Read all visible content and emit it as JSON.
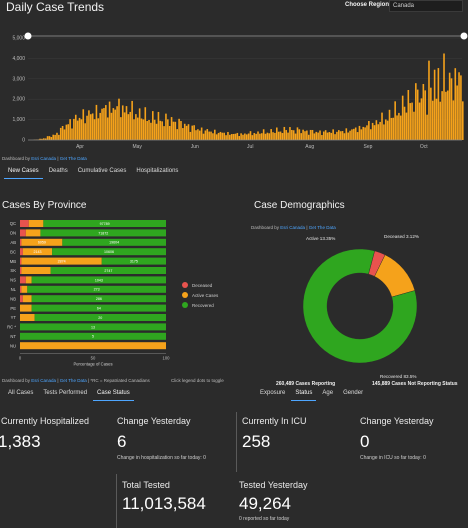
{
  "header": {
    "title": "Daily Case Trends",
    "region_label": "Choose Region:",
    "region_value": "Canada"
  },
  "trend": {
    "y_ticks": [
      "0",
      "1,000",
      "2,000",
      "3,000",
      "4,000",
      "5,000"
    ],
    "x_ticks": [
      "Apr",
      "May",
      "Jun",
      "Jul",
      "Aug",
      "Sep",
      "Oct"
    ],
    "credits_prefix": "Dashboard by",
    "credits_link1": "Esri Canada",
    "credits_sep": "|",
    "credits_link2": "Get The Data",
    "tabs": [
      "New Cases",
      "Deaths",
      "Cumulative Cases",
      "Hospitalizations"
    ],
    "active_tab": "New Cases"
  },
  "chart_data": [
    {
      "type": "bar",
      "title": "Daily Case Trends",
      "x_range": [
        "2020-03-08",
        "2020-10-25"
      ],
      "ylim": [
        0,
        5000
      ],
      "bar_color": "#f5a21b",
      "series_summary": [
        {
          "date": "2020-03-15",
          "value": 60
        },
        {
          "date": "2020-03-22",
          "value": 250
        },
        {
          "date": "2020-03-29",
          "value": 800
        },
        {
          "date": "2020-04-05",
          "value": 1150
        },
        {
          "date": "2020-04-12",
          "value": 1300
        },
        {
          "date": "2020-04-19",
          "value": 1550
        },
        {
          "date": "2020-04-26",
          "value": 1600
        },
        {
          "date": "2020-05-03",
          "value": 1350
        },
        {
          "date": "2020-05-10",
          "value": 1100
        },
        {
          "date": "2020-05-17",
          "value": 1000
        },
        {
          "date": "2020-05-24",
          "value": 900
        },
        {
          "date": "2020-05-31",
          "value": 700
        },
        {
          "date": "2020-06-07",
          "value": 500
        },
        {
          "date": "2020-06-14",
          "value": 400
        },
        {
          "date": "2020-06-21",
          "value": 320
        },
        {
          "date": "2020-06-28",
          "value": 280
        },
        {
          "date": "2020-07-05",
          "value": 330
        },
        {
          "date": "2020-07-12",
          "value": 380
        },
        {
          "date": "2020-07-19",
          "value": 450
        },
        {
          "date": "2020-07-26",
          "value": 500
        },
        {
          "date": "2020-08-02",
          "value": 430
        },
        {
          "date": "2020-08-09",
          "value": 380
        },
        {
          "date": "2020-08-16",
          "value": 400
        },
        {
          "date": "2020-08-23",
          "value": 430
        },
        {
          "date": "2020-08-30",
          "value": 550
        },
        {
          "date": "2020-09-06",
          "value": 750
        },
        {
          "date": "2020-09-13",
          "value": 1000
        },
        {
          "date": "2020-09-20",
          "value": 1400
        },
        {
          "date": "2020-09-27",
          "value": 1900
        },
        {
          "date": "2020-10-04",
          "value": 2300
        },
        {
          "date": "2020-10-11",
          "value": 2700
        },
        {
          "date": "2020-10-18",
          "value": 2900
        },
        {
          "date": "2020-10-25",
          "value": 3000
        }
      ]
    },
    {
      "type": "bar",
      "title": "Cases By Province",
      "stacked": true,
      "orientation": "horizontal",
      "xlabel": "Percentage of Cases",
      "x_ticks": [
        "0",
        "50",
        "100"
      ],
      "categories": [
        "QC",
        "ON",
        "AB",
        "BC",
        "MB",
        "SK",
        "NS",
        "NL",
        "NB",
        "PE",
        "YT",
        "RC *",
        "NT",
        "NU"
      ],
      "series": [
        {
          "name": "Deceased",
          "color": "#e8534e",
          "values": [
            6,
            4,
            1,
            2,
            1,
            1,
            4,
            1,
            2,
            0,
            0,
            0,
            0,
            0
          ]
        },
        {
          "name": "Active Cases",
          "color": "#f5a21b",
          "values": [
            10,
            10,
            28,
            20,
            55,
            20,
            4,
            4,
            6,
            8,
            10,
            0,
            0,
            100
          ]
        },
        {
          "name": "Recovered",
          "color": "#2fa61f",
          "values": [
            84,
            86,
            71,
            78,
            44,
            79,
            92,
            95,
            92,
            92,
            90,
            100,
            100,
            0
          ]
        }
      ],
      "bar_labels": {
        "QC": [
          "",
          "",
          "97789"
        ],
        "ON": [
          "",
          "",
          "71872"
        ],
        "AB": [
          "",
          "6059",
          "19604"
        ],
        "BC": [
          "",
          "2143",
          "10606"
        ],
        "MB": [
          "",
          "2874",
          "3175"
        ],
        "SK": [
          "",
          "",
          "2747"
        ],
        "NS": [
          "",
          "",
          "1043"
        ],
        "NL": [
          "",
          "",
          "273"
        ],
        "NB": [
          "",
          "",
          "286"
        ],
        "PE": [
          "",
          "",
          "64"
        ],
        "YT": [
          "",
          "",
          "20"
        ],
        "RC *": [
          "",
          "",
          "13"
        ],
        "NT": [
          "",
          "",
          "5"
        ],
        "NU": [
          "",
          "",
          ""
        ]
      }
    },
    {
      "type": "pie",
      "title": "Case Demographics",
      "donut": true,
      "slices": [
        {
          "label": "Deceased",
          "percent": 3.12,
          "color": "#e8534e"
        },
        {
          "label": "Active",
          "percent": 13.35,
          "color": "#f5a21b"
        },
        {
          "label": "Recovered",
          "percent": 83.5,
          "color": "#2fa61f"
        }
      ],
      "slice_labels": [
        "Deceased 3.12%",
        "Active 13.35%",
        "Recovered 83.5%"
      ]
    }
  ],
  "province": {
    "title": "Cases By Province",
    "legend": [
      {
        "label": "Deceased",
        "color": "#e8534e"
      },
      {
        "label": "Active Cases",
        "color": "#f5a21b"
      },
      {
        "label": "Recovered",
        "color": "#2fa61f"
      }
    ],
    "credits_prefix": "Dashboard by",
    "credits_link1": "Esri Canada",
    "credits_link2": "Get The Data",
    "credits_note": "| *RC = Repatriated Canadians",
    "legend_hint": "Click legend dots to toggle",
    "tabs": [
      "All Cases",
      "Tests Performed",
      "Case Status"
    ],
    "active_tab": "Case Status"
  },
  "demographics": {
    "title": "Case Demographics",
    "credits_prefix": "Dashboard by",
    "credits_link1": "Esri Canada",
    "credits_link2": "Get The Data",
    "reporting_text": "260,489 Cases Reporting",
    "not_reporting_text": "145,889 Cases Not Reporting Status",
    "tabs": [
      "Exposure",
      "Status",
      "Age",
      "Gender"
    ],
    "active_tab": "Status"
  },
  "stats": {
    "hospitalized_title": "Currently Hospitalized",
    "hospitalized_value": "1,383",
    "hosp_change_title": "Change Yesterday",
    "hosp_change_value": "6",
    "hosp_change_sub": "Change in hospitalization so far today: 0",
    "icu_title": "Currently In ICU",
    "icu_value": "258",
    "icu_change_title": "Change Yesterday",
    "icu_change_value": "0",
    "icu_change_sub": "Change in ICU so far today: 0",
    "tested_title": "Total Tested",
    "tested_value": "11,013,584",
    "tested_yest_title": "Tested Yesterday",
    "tested_yest_value": "49,264",
    "tested_yest_sub": "0 reported so far today"
  }
}
